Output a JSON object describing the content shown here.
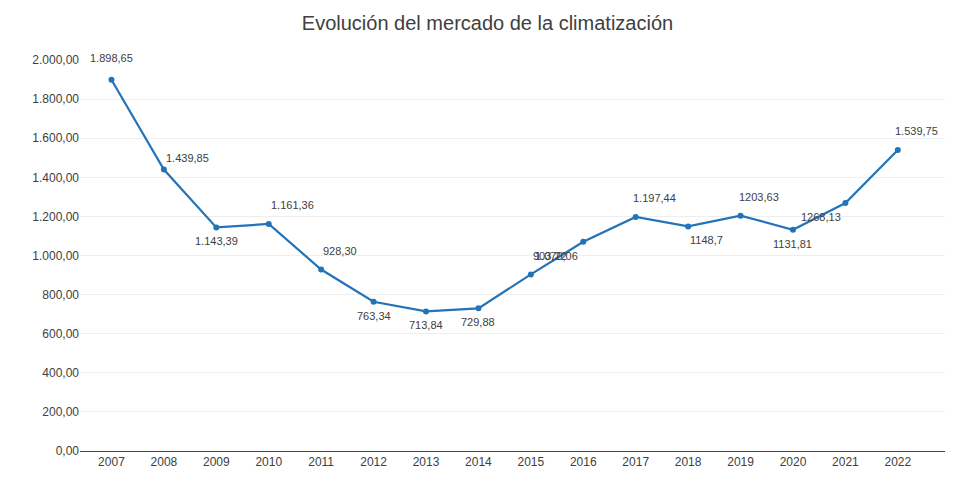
{
  "chart_data": {
    "type": "line",
    "title": "Evolución del mercado de la climatización",
    "x": [
      2007,
      2008,
      2009,
      2010,
      2011,
      2012,
      2013,
      2014,
      2015,
      2016,
      2017,
      2018,
      2019,
      2020,
      2021,
      2022
    ],
    "values": [
      1898.65,
      1439.85,
      1143.39,
      1161.36,
      928.3,
      763.34,
      713.84,
      729.88,
      903.22,
      1070.06,
      1197.44,
      1148.7,
      1203.63,
      1131.81,
      1268.13,
      1539.75
    ],
    "value_labels": [
      "1.898,65",
      "1.439,85",
      "1.143,39",
      "1.161,36",
      "928,30",
      "763,34",
      "713,84",
      "729,88",
      "903,22",
      "1.070,06",
      "1.197,44",
      "1148,7",
      "1203,63",
      "1131,81",
      "1268,13",
      "1.539,75"
    ],
    "color": "#2373B8",
    "marker": "circle",
    "data_labels": true,
    "grid": true,
    "xlim": [
      2006.4,
      2022.9
    ],
    "xticks": [
      2007,
      2008,
      2009,
      2010,
      2011,
      2012,
      2013,
      2014,
      2015,
      2016,
      2017,
      2018,
      2019,
      2020,
      2021,
      2022
    ],
    "ylim": [
      0,
      2000
    ],
    "yticks": [
      {
        "value": 0,
        "label": "0,00"
      },
      {
        "value": 200,
        "label": "200,00"
      },
      {
        "value": 400,
        "label": "400,00"
      },
      {
        "value": 600,
        "label": "600,00"
      },
      {
        "value": 800,
        "label": "800,00"
      },
      {
        "value": 1000,
        "label": "1.000,00"
      },
      {
        "value": 1200,
        "label": "1.200,00"
      },
      {
        "value": 1400,
        "label": "1.400,00"
      },
      {
        "value": 1600,
        "label": "1.600,00"
      },
      {
        "value": 1800,
        "label": "1.800,00"
      },
      {
        "value": 2000,
        "label": "2.000,00"
      }
    ]
  }
}
